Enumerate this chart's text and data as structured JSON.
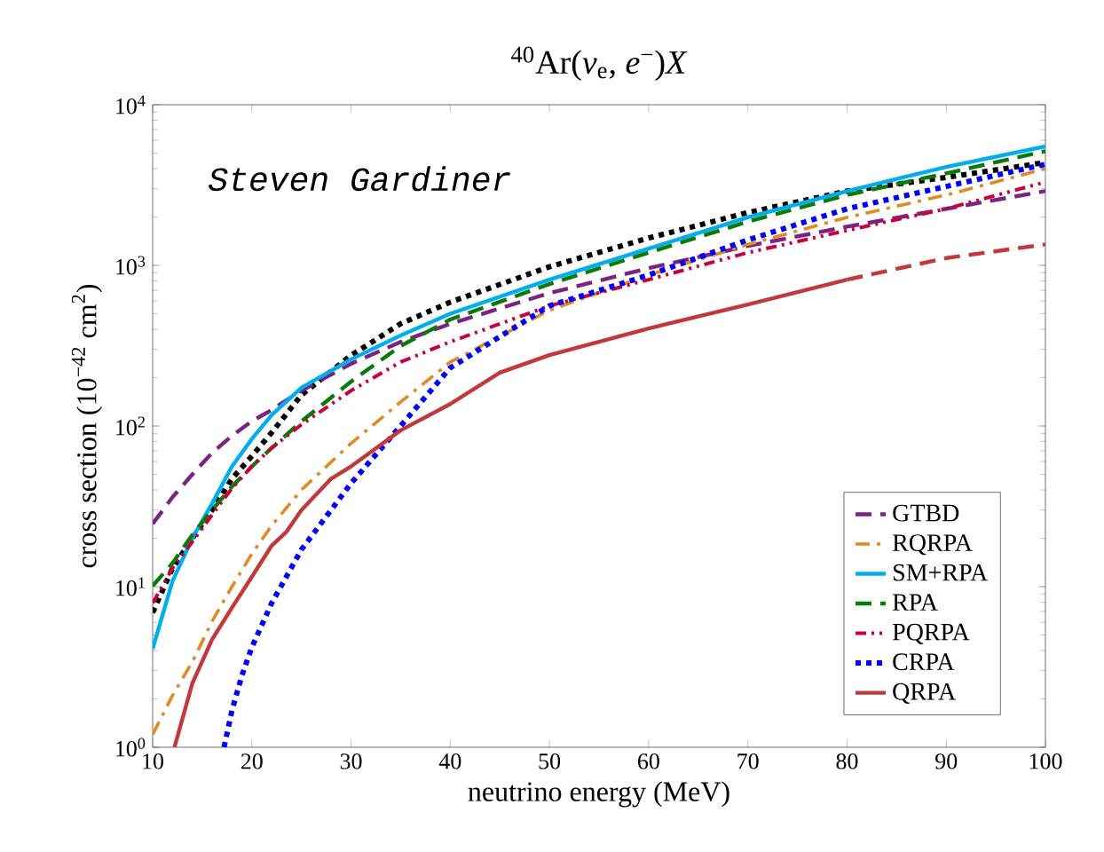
{
  "chart_data": {
    "type": "line",
    "title": "$^{40}$Ar(*ν*$_{e}$, *e*$^{−}$)*X*",
    "xlabel": "neutrino energy (MeV)",
    "ylabel": "cross section (10$^{−42}$ cm$^{2}$)",
    "annotations": [
      "Steven Gardiner"
    ],
    "log": "y",
    "xlim": [
      10,
      100
    ],
    "ylim": [
      1,
      10000
    ],
    "xticks": [
      10,
      20,
      30,
      40,
      50,
      60,
      70,
      80,
      90,
      100
    ],
    "yticks": [
      {
        "value": 1,
        "label": "10$^{0}$"
      },
      {
        "value": 10,
        "label": "10$^{1}$"
      },
      {
        "value": 100,
        "label": "10$^{2}$"
      },
      {
        "value": 1000,
        "label": "10$^{3}$"
      },
      {
        "value": 10000,
        "label": "10$^{4}$"
      }
    ],
    "legend": "bottom right",
    "grid": false,
    "series": [
      {
        "color": "#000000",
        "line_style": "dotted",
        "x": [
          10,
          12,
          14,
          16,
          18,
          20,
          22,
          25,
          30,
          35,
          40,
          50,
          60,
          70,
          80,
          90,
          100
        ],
        "values": [
          6.9,
          13,
          20,
          30,
          47,
          65,
          91,
          156,
          275,
          433,
          590,
          980,
          1480,
          2130,
          2900,
          3530,
          4370
        ]
      },
      {
        "name": "GTBD",
        "color": "#7b2382",
        "line_style": "dashed",
        "x": [
          10,
          12,
          14,
          16,
          18,
          20,
          22,
          25,
          30,
          35,
          40,
          50,
          60,
          70,
          80,
          90,
          100
        ],
        "values": [
          24.6,
          36,
          50,
          68,
          87,
          107,
          126,
          166,
          244,
          334,
          433,
          672,
          960,
          1320,
          1740,
          2250,
          2900
        ]
      },
      {
        "name": "RQRPA",
        "color": "#e08a24",
        "line_style": "dashdotted",
        "x": [
          10,
          12,
          14,
          16,
          18,
          20,
          22,
          25,
          30,
          35,
          40,
          50,
          60,
          70,
          80,
          90,
          100
        ],
        "values": [
          1.2,
          2.1,
          3.4,
          6.1,
          10,
          16,
          24,
          40,
          78,
          141,
          250,
          525,
          870,
          1350,
          1990,
          2740,
          4000
        ]
      },
      {
        "name": "SM+RPA",
        "color": "#00aeef",
        "line_style": "solid",
        "x": [
          10,
          12,
          14,
          16,
          18,
          20,
          22,
          25,
          30,
          35,
          40,
          50,
          60,
          70,
          80,
          90,
          100
        ],
        "values": [
          4.1,
          10.8,
          20,
          33,
          56,
          83,
          117,
          173,
          260,
          366,
          500,
          815,
          1270,
          1990,
          2900,
          4100,
          5500
        ]
      },
      {
        "name": "RPA",
        "color": "#0a7a0a",
        "line_style": "dashed",
        "x": [
          10,
          12,
          14,
          16,
          18,
          20,
          22,
          25,
          30,
          35,
          40,
          50,
          60,
          70,
          80,
          90,
          100
        ],
        "values": [
          10.1,
          14,
          21,
          30,
          42,
          56,
          73,
          107,
          189,
          315,
          460,
          765,
          1200,
          1870,
          2740,
          3740,
          5140
        ]
      },
      {
        "name": "PQRPA",
        "color": "#c8003c",
        "line_style": "dashdotdotted",
        "x": [
          10,
          12,
          14,
          16,
          18,
          20,
          22,
          25,
          30,
          35,
          40,
          50,
          60,
          70,
          80,
          90,
          100
        ],
        "values": [
          7.9,
          13,
          19,
          28,
          41,
          56,
          73,
          102,
          166,
          250,
          334,
          560,
          815,
          1200,
          1650,
          2250,
          3300
        ]
      },
      {
        "name": "CRPA",
        "color": "#0000ff",
        "line_style": "dotted",
        "x": [
          17.2,
          18,
          19,
          20,
          22,
          25,
          30,
          35,
          40,
          45,
          50,
          60,
          70,
          80,
          90,
          100
        ],
        "values": [
          1,
          1.7,
          2.8,
          4.2,
          7.9,
          17,
          44,
          100,
          230,
          360,
          560,
          870,
          1440,
          2250,
          3100,
          4260
        ]
      },
      {
        "name": "QRPA",
        "color": "#c0393b",
        "line_style": "solid",
        "x": [
          12.2,
          14,
          16,
          18,
          20,
          22,
          23.5,
          25,
          28,
          30,
          35,
          40,
          45,
          50,
          60,
          70,
          80
        ],
        "values": [
          1,
          2.5,
          4.7,
          7.4,
          11.5,
          18,
          22,
          30,
          47,
          56,
          94,
          137,
          215,
          276,
          405,
          570,
          815
        ]
      },
      {
        "color": "#c0393b",
        "line_style": "dashed",
        "x": [
          80,
          90,
          100
        ],
        "values": [
          815,
          1110,
          1350
        ]
      }
    ]
  }
}
